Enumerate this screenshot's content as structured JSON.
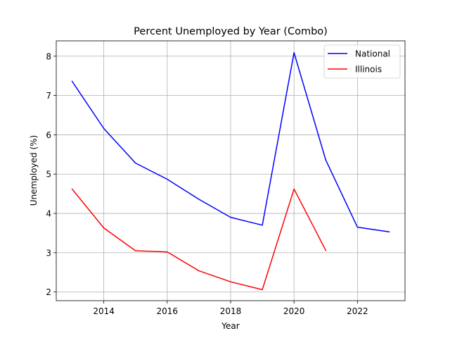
{
  "chart_data": {
    "type": "line",
    "title": "Percent Unemployed by Year (Combo)",
    "xlabel": "Year",
    "ylabel": "Unemployed (%)",
    "xlim": [
      2012.5,
      2023.5
    ],
    "ylim": [
      1.78,
      8.39
    ],
    "xticks": [
      2014,
      2016,
      2018,
      2020,
      2022
    ],
    "yticks": [
      2,
      3,
      4,
      5,
      6,
      7,
      8
    ],
    "grid": true,
    "legend_position": "top-right",
    "series": [
      {
        "name": "National",
        "color": "#0000ff",
        "x": [
          2013,
          2014,
          2015,
          2016,
          2017,
          2018,
          2019,
          2020,
          2021,
          2022,
          2023
        ],
        "y": [
          7.36,
          6.16,
          5.28,
          4.87,
          4.36,
          3.9,
          3.7,
          8.09,
          5.36,
          3.65,
          3.53
        ]
      },
      {
        "name": "Illinois",
        "color": "#ff0000",
        "x": [
          2013,
          2014,
          2015,
          2016,
          2017,
          2018,
          2019,
          2020,
          2021
        ],
        "y": [
          4.62,
          3.63,
          3.05,
          3.02,
          2.54,
          2.26,
          2.06,
          4.62,
          3.06
        ]
      }
    ]
  }
}
